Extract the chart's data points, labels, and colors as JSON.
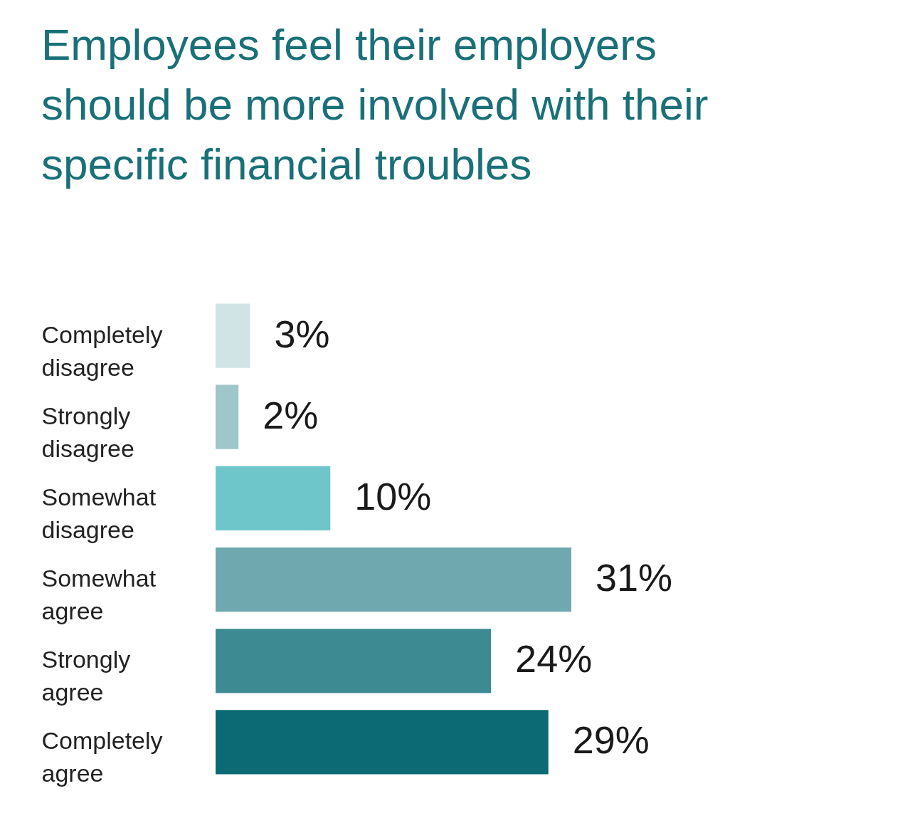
{
  "chart_data": {
    "type": "bar",
    "orientation": "horizontal",
    "title": "Employees feel their employers should be more involved with their specific financial troubles",
    "categories": [
      "Completely disagree",
      "Strongly disagree",
      "Somewhat disagree",
      "Somewhat agree",
      "Strongly agree",
      "Completely agree"
    ],
    "values": [
      3,
      2,
      10,
      31,
      24,
      29
    ],
    "colors": [
      "#d0e3e5",
      "#9fc6c9",
      "#6fc6ca",
      "#6fa8af",
      "#3d8a92",
      "#0b6a74"
    ],
    "value_labels": [
      "3%",
      "2%",
      "10%",
      "31%",
      "24%",
      "29%"
    ],
    "grid": false,
    "legend": false
  }
}
